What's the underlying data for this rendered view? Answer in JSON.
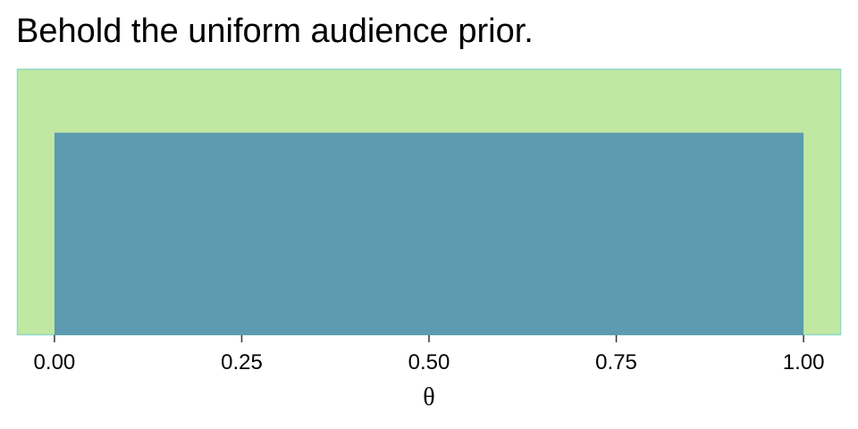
{
  "chart_data": {
    "type": "area",
    "title": "Behold the uniform audience prior.",
    "xlabel": "θ",
    "ylabel": "",
    "xlim": [
      -0.05,
      1.05
    ],
    "ylim": [
      0,
      1.0
    ],
    "x_ticks": [
      0,
      0.25,
      0.5,
      0.75,
      1
    ],
    "x_tick_labels": [
      "0.00",
      "0.25",
      "0.50",
      "0.75",
      "1.00"
    ],
    "series": [
      {
        "x": [
          0,
          1
        ],
        "y": [
          1,
          1
        ]
      }
    ],
    "y_axis_visible": false,
    "grid": false,
    "panel_background": "#c1e8a3",
    "panel_border": "#8fd9c4",
    "fill_color": "#5c9bb0"
  }
}
